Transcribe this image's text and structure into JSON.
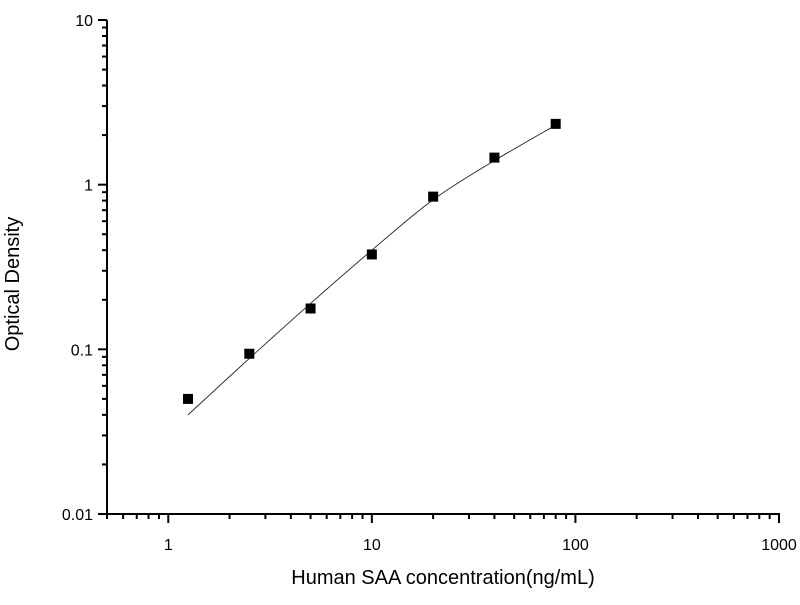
{
  "chart_data": {
    "type": "scatter",
    "title": "",
    "xlabel": "Human SAA concentration(ng/mL)",
    "ylabel": "Optical Density",
    "xscale": "log",
    "yscale": "log",
    "xlim": [
      0.5,
      1000
    ],
    "ylim": [
      0.01,
      10
    ],
    "xticks": [
      1,
      10,
      100,
      1000
    ],
    "xtick_labels": [
      "1",
      "10",
      "100",
      "1000"
    ],
    "yticks": [
      0.01,
      0.1,
      1,
      10
    ],
    "ytick_labels": [
      "0.01",
      "0.1",
      "1",
      "10"
    ],
    "grid": false,
    "legend": "none",
    "series": [
      {
        "name": "Standards",
        "marker": "square",
        "color": "#000000",
        "x": [
          1.25,
          2.5,
          5,
          10,
          20,
          40,
          80
        ],
        "y": [
          0.05,
          0.094,
          0.177,
          0.377,
          0.846,
          1.46,
          2.34
        ]
      },
      {
        "name": "Fitted curve",
        "marker": "none",
        "line": true,
        "color": "#000000",
        "x": [
          1.25,
          2.5,
          5,
          10,
          20,
          40,
          80
        ],
        "y": [
          0.04,
          0.088,
          0.19,
          0.4,
          0.81,
          1.4,
          2.3
        ]
      }
    ]
  }
}
